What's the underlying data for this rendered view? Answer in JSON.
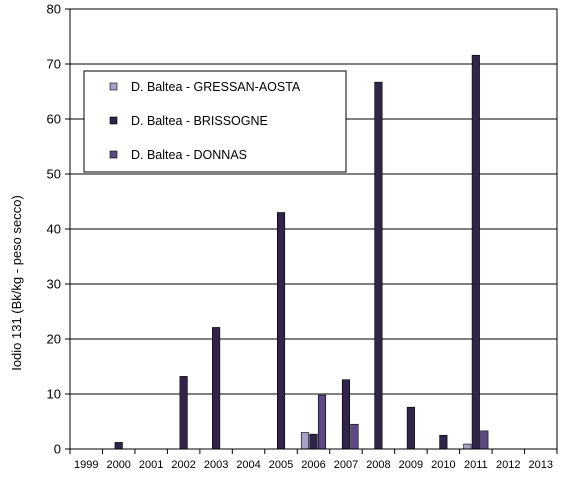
{
  "chart_data": {
    "type": "bar",
    "title": "",
    "xlabel": "",
    "ylabel": "Iodio 131  (Bk/kg - peso secco)",
    "ylim": [
      0,
      80
    ],
    "yticks": [
      0,
      10,
      20,
      30,
      40,
      50,
      60,
      70,
      80
    ],
    "grid": "horizontal",
    "legend_position": "top-left",
    "categories": [
      "1999",
      "2000",
      "2001",
      "2002",
      "2003",
      "2004",
      "2005",
      "2006",
      "2007",
      "2008",
      "2009",
      "2010",
      "2011",
      "2012",
      "2013"
    ],
    "series": [
      {
        "name": "D. Baltea - GRESSAN-AOSTA",
        "color": "#a6a2c6",
        "values": [
          null,
          null,
          null,
          null,
          null,
          null,
          null,
          3.0,
          null,
          null,
          null,
          null,
          0.9,
          null,
          null
        ]
      },
      {
        "name": "D. Baltea - BRISSOGNE",
        "color": "#2f2449",
        "values": [
          null,
          1.2,
          null,
          13.2,
          22.1,
          null,
          43.0,
          2.7,
          12.6,
          66.7,
          7.6,
          2.5,
          71.6,
          null,
          null
        ]
      },
      {
        "name": "D. Baltea - DONNAS",
        "color": "#5c4a86",
        "values": [
          null,
          null,
          null,
          null,
          null,
          null,
          null,
          9.8,
          4.5,
          null,
          null,
          null,
          3.3,
          null,
          null
        ]
      }
    ]
  }
}
